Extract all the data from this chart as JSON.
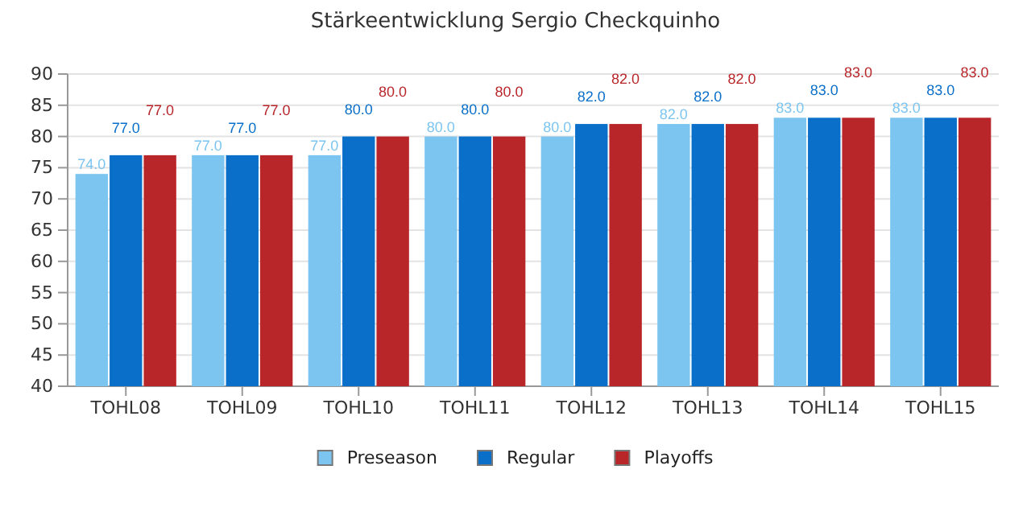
{
  "chart_data": {
    "type": "bar",
    "title": "Stärkeentwicklung Sergio Checkquinho",
    "categories": [
      "TOHL08",
      "TOHL09",
      "TOHL10",
      "TOHL11",
      "TOHL12",
      "TOHL13",
      "TOHL14",
      "TOHL15"
    ],
    "series": [
      {
        "name": "Preseason",
        "color": "#7cc5f0",
        "values": [
          74,
          77,
          77,
          80,
          80,
          82,
          83,
          83
        ],
        "value_labels": [
          "74.0",
          "77.0",
          "77.0",
          "80.0",
          "80.0",
          "82.0",
          "83.0",
          "83.0"
        ]
      },
      {
        "name": "Regular",
        "color": "#0a6fc9",
        "values": [
          77,
          77,
          80,
          80,
          82,
          82,
          83,
          83
        ],
        "value_labels": [
          "77.0",
          "77.0",
          "80.0",
          "80.0",
          "82.0",
          "82.0",
          "83.0",
          "83.0"
        ]
      },
      {
        "name": "Playoffs",
        "color": "#b8262a",
        "values": [
          77,
          77,
          80,
          80,
          82,
          82,
          83,
          83
        ],
        "value_labels": [
          "77.0",
          "77.0",
          "80.0",
          "80.0",
          "82.0",
          "82.0",
          "83.0",
          "83.0"
        ]
      }
    ],
    "ylim": [
      40,
      90
    ],
    "yticks": [
      40,
      45,
      50,
      55,
      60,
      65,
      70,
      75,
      80,
      85,
      90
    ],
    "grid": "y",
    "legend": "bottom"
  }
}
